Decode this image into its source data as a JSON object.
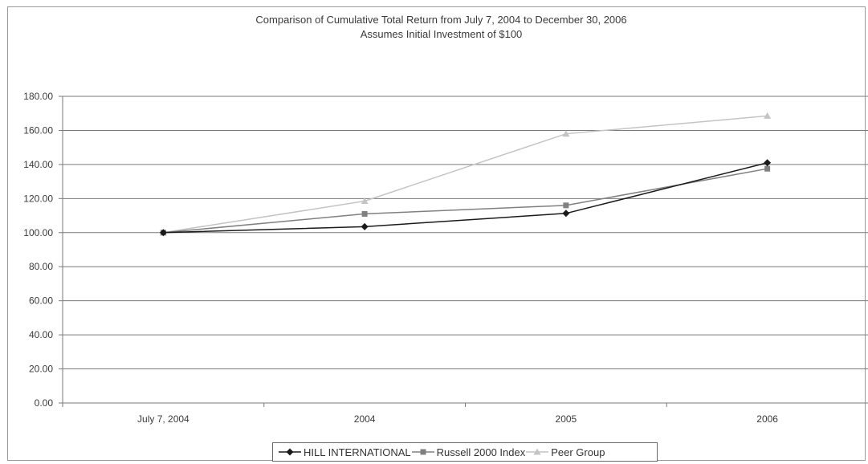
{
  "chart_data": {
    "type": "line",
    "title": "Comparison of Cumulative Total Return from July 7, 2004 to December 30, 2006",
    "subtitle": "Assumes Initial Investment of $100",
    "categories": [
      "July 7, 2004",
      "2004",
      "2005",
      "2006"
    ],
    "ylim": [
      0,
      180
    ],
    "yticks": [
      "0.00",
      "20.00",
      "40.00",
      "60.00",
      "80.00",
      "100.00",
      "120.00",
      "140.00",
      "160.00",
      "180.00"
    ],
    "grid": true,
    "legend_position": "bottom",
    "series": [
      {
        "name": "HILL INTERNATIONAL",
        "values": [
          100,
          103.5,
          111.3,
          141.0
        ],
        "color": "#1a1a1a",
        "marker": "diamond"
      },
      {
        "name": "Russell 2000 Index",
        "values": [
          100,
          111.0,
          116.0,
          137.5
        ],
        "color": "#808080",
        "marker": "square"
      },
      {
        "name": "Peer Group",
        "values": [
          100,
          118.5,
          158.0,
          168.5
        ],
        "color": "#c4c4c4",
        "marker": "triangle"
      }
    ]
  }
}
